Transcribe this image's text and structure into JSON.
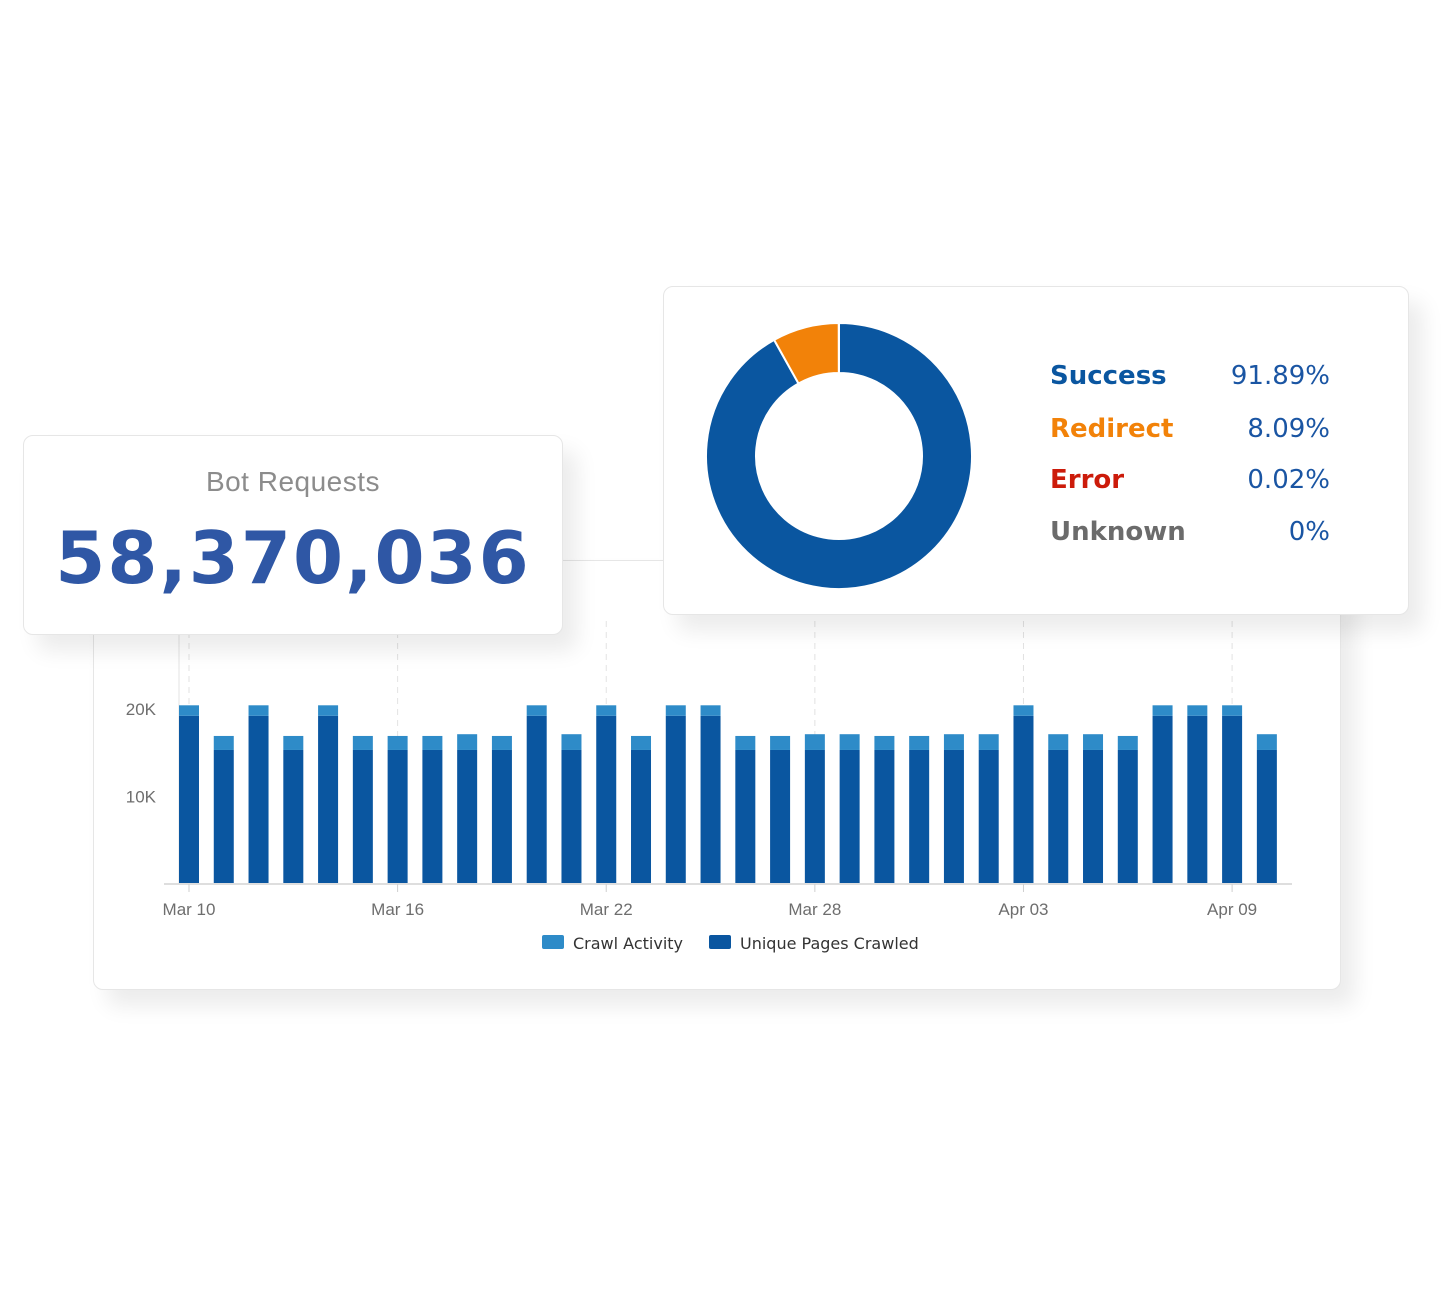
{
  "bot_requests": {
    "label": "Bot Requests",
    "value": "58,370,036"
  },
  "status_breakdown": {
    "items": [
      {
        "label": "Success",
        "value": "91.89%",
        "color": "#0a56a0"
      },
      {
        "label": "Redirect",
        "value": "8.09%",
        "color": "#f28209"
      },
      {
        "label": "Error",
        "value": "0.02%",
        "color": "#cc1b0a"
      },
      {
        "label": "Unknown",
        "value": "0%",
        "color": "#6b6b6b"
      }
    ]
  },
  "chart_data": [
    {
      "type": "pie",
      "variant": "donut",
      "labels": [
        "Success",
        "Redirect",
        "Error",
        "Unknown"
      ],
      "values": [
        91.89,
        8.09,
        0.02,
        0
      ],
      "colors": [
        "#0a56a0",
        "#f28209",
        "#cc1b0a",
        "#6b6b6b"
      ]
    },
    {
      "type": "bar",
      "stacked": true,
      "categories": [
        "Mar 10",
        "Mar 11",
        "Mar 12",
        "Mar 13",
        "Mar 14",
        "Mar 15",
        "Mar 16",
        "Mar 17",
        "Mar 18",
        "Mar 19",
        "Mar 20",
        "Mar 21",
        "Mar 22",
        "Mar 23",
        "Mar 24",
        "Mar 25",
        "Mar 26",
        "Mar 27",
        "Mar 28",
        "Mar 29",
        "Mar 30",
        "Mar 31",
        "Apr 01",
        "Apr 02",
        "Apr 03",
        "Apr 04",
        "Apr 05",
        "Apr 06",
        "Apr 07",
        "Apr 08",
        "Apr 09",
        "Apr 10"
      ],
      "tick_labels": [
        "Mar 10",
        "Mar 16",
        "Mar 22",
        "Mar 28",
        "Apr 03",
        "Apr 09"
      ],
      "ylim": [
        0,
        25000
      ],
      "y_ticks": [
        10000,
        20000
      ],
      "y_tick_labels": [
        "10K",
        "20K"
      ],
      "series": [
        {
          "name": "Unique Pages Crawled",
          "color": "#0a56a0",
          "values": [
            19200,
            15300,
            19200,
            15300,
            19200,
            15300,
            15300,
            15300,
            15300,
            15300,
            19200,
            15300,
            19200,
            15300,
            19200,
            19200,
            15300,
            15300,
            15300,
            15300,
            15300,
            15300,
            15300,
            15300,
            19200,
            15300,
            15300,
            15300,
            19200,
            19200,
            19200,
            15300
          ]
        },
        {
          "name": "Crawl Activity",
          "color": "#2e8bc8",
          "values": [
            1200,
            1600,
            1200,
            1600,
            1200,
            1600,
            1600,
            1600,
            1800,
            1600,
            1200,
            1800,
            1200,
            1600,
            1200,
            1200,
            1600,
            1600,
            1800,
            1800,
            1600,
            1600,
            1800,
            1800,
            1200,
            1800,
            1800,
            1600,
            1200,
            1200,
            1200,
            1800
          ]
        }
      ],
      "legend": [
        "Crawl Activity",
        "Unique Pages Crawled"
      ],
      "legend_position": "bottom-center",
      "grid": "vertical-dashed"
    }
  ]
}
